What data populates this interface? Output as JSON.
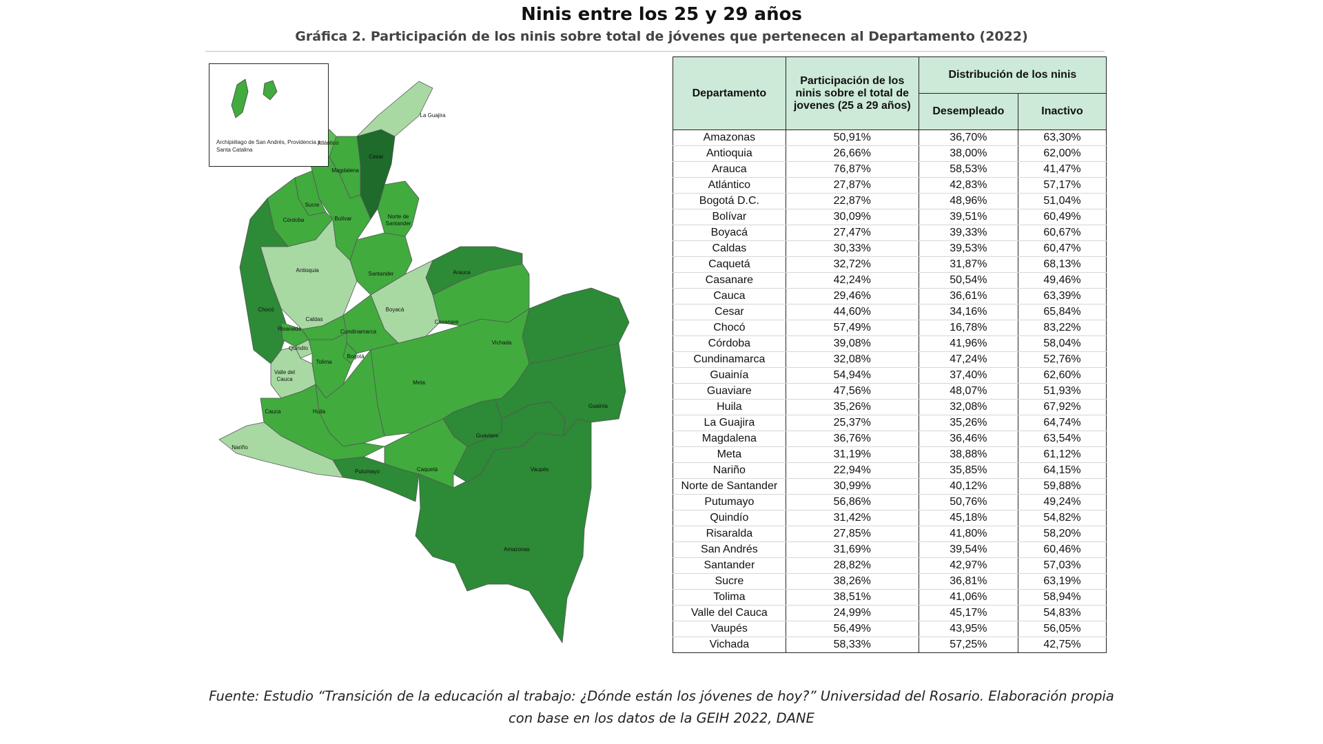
{
  "title": "Ninis entre los 25 y 29 años",
  "subtitle": "Gráfica 2. Participación de los ninis sobre total de jóvenes que pertenecen al Departamento (2022)",
  "colors": {
    "light": "#a9d9a3",
    "medium_light": "#5bbf55",
    "medium": "#41ab3e",
    "dark": "#2d8a36",
    "darkest": "#1e6b2b",
    "header_bg": "#ccead7"
  },
  "map": {
    "inset_label": "Archipiélago de San Andrés, Providencia y Santa Catalina",
    "labels": {
      "la_guajira": "La Guajira",
      "atlantico": "Atlántico",
      "magdalena": "Magdalena",
      "cesar": "Cesar",
      "sucre": "Sucre",
      "bolivar": "Bolívar",
      "cordoba": "Córdoba",
      "norte_santander": "Norte de Santander",
      "antioquia": "Antioquia",
      "santander": "Santander",
      "arauca": "Arauca",
      "choco": "Chocó",
      "caldas": "Caldas",
      "risaralda": "Risaralda",
      "boyaca": "Boyacá",
      "casanare": "Casanare",
      "cundinamarca": "Cundinamarca",
      "quindio": "Quindío",
      "bogota": "Bogotá",
      "vichada": "Vichada",
      "tolima": "Tolima",
      "valle": "Valle del Cauca",
      "meta": "Meta",
      "cauca": "Cauca",
      "huila": "Huila",
      "guainia": "Guainía",
      "guaviare": "Guaviare",
      "narino": "Nariño",
      "caqueta": "Caquetá",
      "putumayo": "Putumayo",
      "vaupes": "Vaupés",
      "amazonas": "Amazonas"
    }
  },
  "table": {
    "headers": {
      "departamento": "Departamento",
      "participacion": "Participación de los ninis sobre el total de jovenes (25 a 29 años)",
      "distribucion": "Distribución de los ninis",
      "desempleado": "Desempleado",
      "inactivo": "Inactivo"
    },
    "rows": [
      [
        "Amazonas",
        "50,91%",
        "36,70%",
        "63,30%"
      ],
      [
        "Antioquia",
        "26,66%",
        "38,00%",
        "62,00%"
      ],
      [
        "Arauca",
        "76,87%",
        "58,53%",
        "41,47%"
      ],
      [
        "Atlántico",
        "27,87%",
        "42,83%",
        "57,17%"
      ],
      [
        "Bogotá D.C.",
        "22,87%",
        "48,96%",
        "51,04%"
      ],
      [
        "Bolívar",
        "30,09%",
        "39,51%",
        "60,49%"
      ],
      [
        "Boyacá",
        "27,47%",
        "39,33%",
        "60,67%"
      ],
      [
        "Caldas",
        "30,33%",
        "39,53%",
        "60,47%"
      ],
      [
        "Caquetá",
        "32,72%",
        "31,87%",
        "68,13%"
      ],
      [
        "Casanare",
        "42,24%",
        "50,54%",
        "49,46%"
      ],
      [
        "Cauca",
        "29,46%",
        "36,61%",
        "63,39%"
      ],
      [
        "Cesar",
        "44,60%",
        "34,16%",
        "65,84%"
      ],
      [
        "Chocó",
        "57,49%",
        "16,78%",
        "83,22%"
      ],
      [
        "Córdoba",
        "39,08%",
        "41,96%",
        "58,04%"
      ],
      [
        "Cundinamarca",
        "32,08%",
        "47,24%",
        "52,76%"
      ],
      [
        "Guainía",
        "54,94%",
        "37,40%",
        "62,60%"
      ],
      [
        "Guaviare",
        "47,56%",
        "48,07%",
        "51,93%"
      ],
      [
        "Huila",
        "35,26%",
        "32,08%",
        "67,92%"
      ],
      [
        "La Guajira",
        "25,37%",
        "35,26%",
        "64,74%"
      ],
      [
        "Magdalena",
        "36,76%",
        "36,46%",
        "63,54%"
      ],
      [
        "Meta",
        "31,19%",
        "38,88%",
        "61,12%"
      ],
      [
        "Nariño",
        "22,94%",
        "35,85%",
        "64,15%"
      ],
      [
        "Norte de Santander",
        "30,99%",
        "40,12%",
        "59,88%"
      ],
      [
        "Putumayo",
        "56,86%",
        "50,76%",
        "49,24%"
      ],
      [
        "Quindío",
        "31,42%",
        "45,18%",
        "54,82%"
      ],
      [
        "Risaralda",
        "27,85%",
        "41,80%",
        "58,20%"
      ],
      [
        "San Andrés",
        "31,69%",
        "39,54%",
        "60,46%"
      ],
      [
        "Santander",
        "28,82%",
        "42,97%",
        "57,03%"
      ],
      [
        "Sucre",
        "38,26%",
        "36,81%",
        "63,19%"
      ],
      [
        "Tolima",
        "38,51%",
        "41,06%",
        "58,94%"
      ],
      [
        "Valle del Cauca",
        "24,99%",
        "45,17%",
        "54,83%"
      ],
      [
        "Vaupés",
        "56,49%",
        "43,95%",
        "56,05%"
      ],
      [
        "Vichada",
        "58,33%",
        "57,25%",
        "42,75%"
      ]
    ]
  },
  "source": "Fuente: Estudio “Transición de la educación al trabajo: ¿Dónde están los jóvenes de hoy?” Universidad del Rosario. Elaboración propia con base en los datos de la GEIH 2022, DANE"
}
